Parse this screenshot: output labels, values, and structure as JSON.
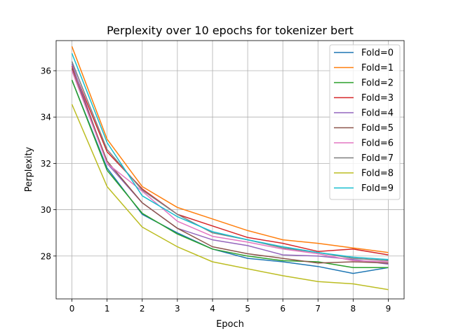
{
  "chart_data": {
    "type": "line",
    "title": "Perplexity over 10 epochs for tokenizer bert",
    "xlabel": "Epoch",
    "ylabel": "Perplexity",
    "x": [
      0,
      1,
      2,
      3,
      4,
      5,
      6,
      7,
      8,
      9
    ],
    "xticks": [
      "0",
      "1",
      "2",
      "3",
      "4",
      "5",
      "6",
      "7",
      "8",
      "9"
    ],
    "yticks": [
      "28",
      "30",
      "32",
      "34",
      "36"
    ],
    "xlim": [
      -0.45,
      9.45
    ],
    "ylim": [
      26.15,
      37.3
    ],
    "grid": true,
    "legend_position": "top-right",
    "series": [
      {
        "name": "Fold=0",
        "color": "#1f77b4",
        "values": [
          35.6,
          31.8,
          29.8,
          29.0,
          28.3,
          27.9,
          27.75,
          27.55,
          27.25,
          27.5
        ]
      },
      {
        "name": "Fold=1",
        "color": "#ff7f0e",
        "values": [
          37.05,
          33.05,
          31.0,
          30.1,
          29.6,
          29.1,
          28.7,
          28.55,
          28.35,
          28.15
        ]
      },
      {
        "name": "Fold=2",
        "color": "#2ca02c",
        "values": [
          35.6,
          31.7,
          29.85,
          28.95,
          28.3,
          28.0,
          27.8,
          27.75,
          27.5,
          27.5
        ]
      },
      {
        "name": "Fold=3",
        "color": "#d62728",
        "values": [
          36.2,
          32.5,
          30.9,
          29.8,
          29.3,
          28.8,
          28.55,
          28.2,
          28.3,
          28.05
        ]
      },
      {
        "name": "Fold=4",
        "color": "#9467bd",
        "values": [
          36.3,
          32.0,
          30.3,
          29.2,
          28.7,
          28.45,
          28.05,
          28.0,
          27.85,
          27.65
        ]
      },
      {
        "name": "Fold=5",
        "color": "#8c564b",
        "values": [
          36.1,
          32.1,
          30.3,
          29.2,
          28.4,
          28.1,
          27.9,
          27.7,
          27.75,
          27.7
        ]
      },
      {
        "name": "Fold=6",
        "color": "#e377c2",
        "values": [
          36.0,
          32.0,
          30.8,
          29.5,
          28.85,
          28.6,
          28.3,
          28.1,
          27.8,
          27.75
        ]
      },
      {
        "name": "Fold=7",
        "color": "#7f7f7f",
        "values": [
          36.4,
          32.6,
          30.85,
          29.8,
          29.0,
          28.7,
          28.35,
          28.15,
          27.9,
          27.8
        ]
      },
      {
        "name": "Fold=8",
        "color": "#bcbd22",
        "values": [
          34.55,
          31.0,
          29.25,
          28.4,
          27.75,
          27.45,
          27.15,
          26.9,
          26.8,
          26.55
        ]
      },
      {
        "name": "Fold=9",
        "color": "#17becf",
        "values": [
          36.75,
          32.9,
          30.6,
          29.7,
          29.05,
          28.7,
          28.4,
          28.15,
          27.95,
          27.85
        ]
      }
    ]
  }
}
